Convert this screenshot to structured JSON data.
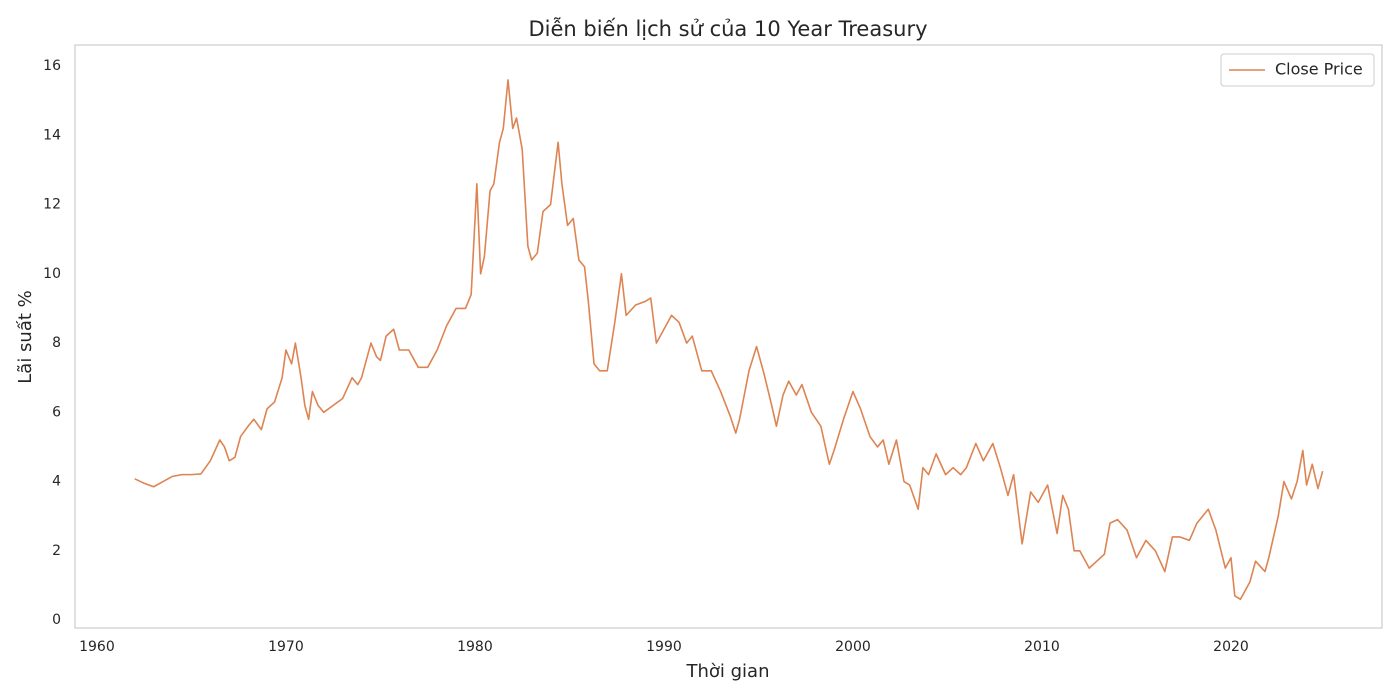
{
  "chart_data": {
    "type": "line",
    "title": "Diễn biến lịch sử của 10 Year Treasury",
    "x_label": "Thời gian",
    "y_label": "Lãi suất %",
    "x": [
      1962.0,
      1962.5,
      1963.0,
      1963.5,
      1964.0,
      1964.5,
      1965.0,
      1965.5,
      1966.0,
      1966.5,
      1966.75,
      1967.0,
      1967.3,
      1967.6,
      1968.0,
      1968.3,
      1968.7,
      1969.0,
      1969.4,
      1969.8,
      1970.0,
      1970.3,
      1970.5,
      1970.8,
      1971.0,
      1971.2,
      1971.4,
      1971.7,
      1972.0,
      1972.5,
      1973.0,
      1973.5,
      1973.8,
      1974.0,
      1974.5,
      1974.8,
      1975.0,
      1975.3,
      1975.7,
      1976.0,
      1976.5,
      1977.0,
      1977.5,
      1978.0,
      1978.5,
      1979.0,
      1979.5,
      1979.8,
      1980.1,
      1980.3,
      1980.5,
      1980.8,
      1981.0,
      1981.3,
      1981.5,
      1981.75,
      1982.0,
      1982.2,
      1982.5,
      1982.8,
      1983.0,
      1983.3,
      1983.6,
      1984.0,
      1984.4,
      1984.6,
      1984.9,
      1985.2,
      1985.5,
      1985.8,
      1986.0,
      1986.3,
      1986.6,
      1987.0,
      1987.4,
      1987.75,
      1988.0,
      1988.5,
      1989.0,
      1989.3,
      1989.6,
      1990.0,
      1990.4,
      1990.8,
      1991.2,
      1991.5,
      1992.0,
      1992.5,
      1993.0,
      1993.5,
      1993.8,
      1994.0,
      1994.5,
      1994.9,
      1995.3,
      1995.7,
      1995.95,
      1996.3,
      1996.6,
      1997.0,
      1997.3,
      1997.8,
      1998.3,
      1998.75,
      1999.0,
      1999.5,
      2000.0,
      2000.4,
      2000.9,
      2001.3,
      2001.6,
      2001.9,
      2002.3,
      2002.7,
      2003.0,
      2003.45,
      2003.7,
      2004.0,
      2004.4,
      2004.9,
      2005.3,
      2005.7,
      2006.0,
      2006.5,
      2006.9,
      2007.4,
      2007.8,
      2008.2,
      2008.5,
      2008.95,
      2009.4,
      2009.8,
      2010.3,
      2010.8,
      2011.1,
      2011.4,
      2011.7,
      2012.0,
      2012.5,
      2012.9,
      2013.3,
      2013.6,
      2014.0,
      2014.5,
      2015.0,
      2015.5,
      2016.0,
      2016.5,
      2016.9,
      2017.3,
      2017.8,
      2018.2,
      2018.8,
      2019.2,
      2019.7,
      2020.0,
      2020.2,
      2020.5,
      2021.0,
      2021.3,
      2021.8,
      2022.0,
      2022.5,
      2022.8,
      2023.2,
      2023.5,
      2023.8,
      2024.0,
      2024.3,
      2024.6,
      2024.85
    ],
    "series": [
      {
        "name": "Close Price",
        "color": "#dd8452",
        "values": [
          4.08,
          3.95,
          3.85,
          4.0,
          4.15,
          4.2,
          4.2,
          4.22,
          4.6,
          5.2,
          5.0,
          4.6,
          4.7,
          5.3,
          5.6,
          5.8,
          5.5,
          6.1,
          6.3,
          7.0,
          7.8,
          7.4,
          8.0,
          7.0,
          6.2,
          5.8,
          6.6,
          6.2,
          6.0,
          6.2,
          6.4,
          7.0,
          6.8,
          7.0,
          8.0,
          7.6,
          7.5,
          8.2,
          8.4,
          7.8,
          7.8,
          7.3,
          7.3,
          7.8,
          8.5,
          9.0,
          9.0,
          9.4,
          12.6,
          10.0,
          10.5,
          12.4,
          12.6,
          13.8,
          14.2,
          15.6,
          14.2,
          14.5,
          13.6,
          10.8,
          10.4,
          10.6,
          11.8,
          12.0,
          13.8,
          12.6,
          11.4,
          11.6,
          10.4,
          10.2,
          9.2,
          7.4,
          7.2,
          7.2,
          8.6,
          10.0,
          8.8,
          9.1,
          9.2,
          9.3,
          8.0,
          8.4,
          8.8,
          8.6,
          8.0,
          8.2,
          7.2,
          7.2,
          6.6,
          5.9,
          5.4,
          5.8,
          7.2,
          7.9,
          7.1,
          6.2,
          5.6,
          6.5,
          6.9,
          6.5,
          6.8,
          6.0,
          5.6,
          4.5,
          4.9,
          5.8,
          6.6,
          6.1,
          5.3,
          5.0,
          5.2,
          4.5,
          5.2,
          4.0,
          3.9,
          3.2,
          4.4,
          4.2,
          4.8,
          4.2,
          4.4,
          4.2,
          4.4,
          5.1,
          4.6,
          5.1,
          4.4,
          3.6,
          4.2,
          2.2,
          3.7,
          3.4,
          3.9,
          2.5,
          3.6,
          3.2,
          2.0,
          2.0,
          1.5,
          1.7,
          1.9,
          2.8,
          2.9,
          2.6,
          1.8,
          2.3,
          2.0,
          1.4,
          2.4,
          2.4,
          2.3,
          2.8,
          3.2,
          2.6,
          1.5,
          1.8,
          0.7,
          0.6,
          1.1,
          1.7,
          1.4,
          1.8,
          3.0,
          4.0,
          3.5,
          4.0,
          4.9,
          3.9,
          4.5,
          3.8,
          4.3
        ]
      }
    ],
    "xlim": [
      1958.84,
      2027.99
    ],
    "ylim": [
      -0.23,
      16.61
    ],
    "xticks": [
      1960,
      1970,
      1980,
      1990,
      2000,
      2010,
      2020
    ],
    "yticks": [
      0,
      2,
      4,
      6,
      8,
      10,
      12,
      14,
      16
    ],
    "grid": false,
    "legend": "upper right"
  }
}
